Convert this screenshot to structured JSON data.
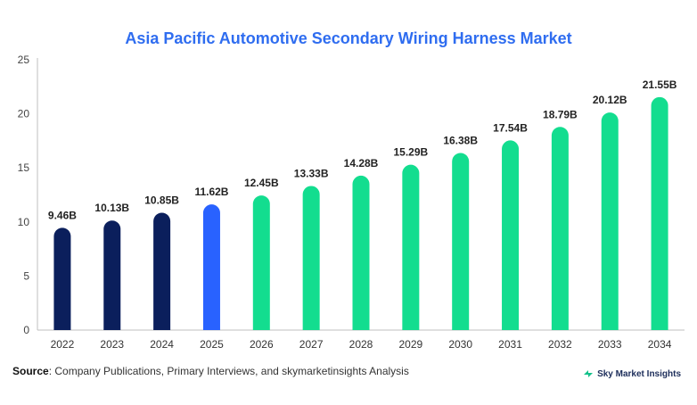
{
  "chart_data": {
    "type": "bar",
    "title": "Asia Pacific Automotive Secondary Wiring Harness Market",
    "categories": [
      "2022",
      "2023",
      "2024",
      "2025",
      "2026",
      "2027",
      "2028",
      "2029",
      "2030",
      "2031",
      "2032",
      "2033",
      "2034"
    ],
    "values": [
      9.46,
      10.13,
      10.85,
      11.62,
      12.45,
      13.33,
      14.28,
      15.29,
      16.38,
      17.54,
      18.79,
      20.12,
      21.55
    ],
    "value_labels": [
      "9.46B",
      "10.13B",
      "10.85B",
      "11.62B",
      "12.45B",
      "13.33B",
      "14.28B",
      "15.29B",
      "16.38B",
      "17.54B",
      "18.79B",
      "20.12B",
      "21.55B"
    ],
    "bar_colors": [
      "#0b1f5c",
      "#0b1f5c",
      "#0b1f5c",
      "#2962ff",
      "#13dd8f",
      "#13dd8f",
      "#13dd8f",
      "#13dd8f",
      "#13dd8f",
      "#13dd8f",
      "#13dd8f",
      "#13dd8f",
      "#13dd8f"
    ],
    "yticks": [
      0,
      5,
      10,
      15,
      20,
      25
    ],
    "ylim": [
      0,
      25
    ],
    "xlabel": "",
    "ylabel": "",
    "grid": false
  },
  "footer": {
    "source_label": "Source",
    "source_text": ": Company Publications, Primary Interviews, and skymarketinsights Analysis",
    "brand_name": "Sky Market Insights"
  },
  "colors": {
    "title": "#2f6df0",
    "historical": "#0b1f5c",
    "current": "#2962ff",
    "forecast": "#13dd8f"
  }
}
